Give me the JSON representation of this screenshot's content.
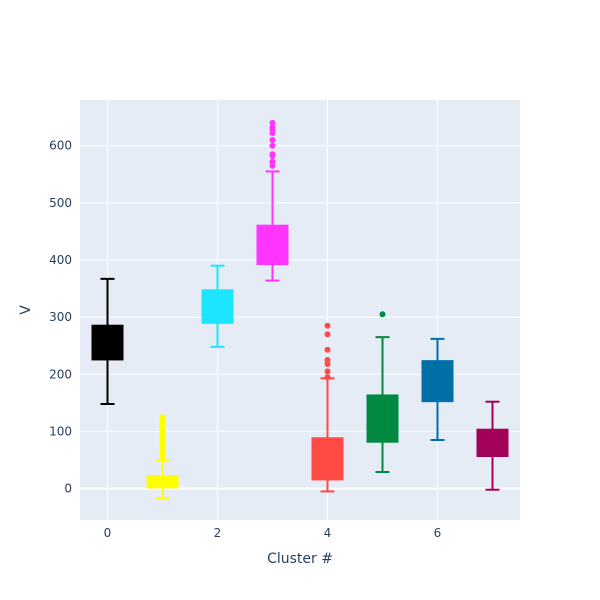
{
  "chart_data": {
    "type": "box",
    "xlabel": "Cluster #",
    "ylabel": "V",
    "xlim": [
      -0.5,
      7.5
    ],
    "ylim": [
      -55,
      680
    ],
    "x_ticks": [
      0,
      2,
      4,
      6
    ],
    "y_ticks": [
      0,
      100,
      200,
      300,
      400,
      500,
      600
    ],
    "grid": true,
    "colors": {
      "plot_bg": "#E5ECF6",
      "grid": "#ffffff",
      "text": "#2a3f5f"
    },
    "series": [
      {
        "x": 0,
        "q1": 226,
        "median": 255,
        "q3": 285,
        "lower": 148,
        "upper": 367,
        "outliers": [],
        "color": "#000000"
      },
      {
        "x": 1,
        "q1": 2,
        "median": 12,
        "q3": 22,
        "lower": -17,
        "upper": 50,
        "outliers": [
          55,
          60,
          65,
          70,
          75,
          80,
          85,
          90,
          95,
          100,
          105,
          110,
          115,
          120,
          125
        ],
        "color": "#FFFF00"
      },
      {
        "x": 2,
        "q1": 290,
        "median": 318,
        "q3": 347,
        "lower": 248,
        "upper": 390,
        "outliers": [],
        "color": "#1CE6FF"
      },
      {
        "x": 3,
        "q1": 393,
        "median": 428,
        "q3": 460,
        "lower": 364,
        "upper": 555,
        "outliers": [
          565,
          572,
          582,
          585,
          600,
          610,
          622,
          628,
          632,
          640
        ],
        "color": "#FF34FF"
      },
      {
        "x": 4,
        "q1": 16,
        "median": 50,
        "q3": 88,
        "lower": -5,
        "upper": 193,
        "outliers": [
          195,
          205,
          218,
          225,
          243,
          270,
          285
        ],
        "color": "#FF4A46"
      },
      {
        "x": 5,
        "q1": 82,
        "median": 120,
        "q3": 163,
        "lower": 29,
        "upper": 265,
        "outliers": [
          305
        ],
        "color": "#008941"
      },
      {
        "x": 6,
        "q1": 153,
        "median": 188,
        "q3": 223,
        "lower": 85,
        "upper": 262,
        "outliers": [],
        "color": "#006FA6"
      },
      {
        "x": 7,
        "q1": 57,
        "median": 80,
        "q3": 103,
        "lower": -2,
        "upper": 152,
        "outliers": [],
        "color": "#A30059"
      }
    ]
  }
}
